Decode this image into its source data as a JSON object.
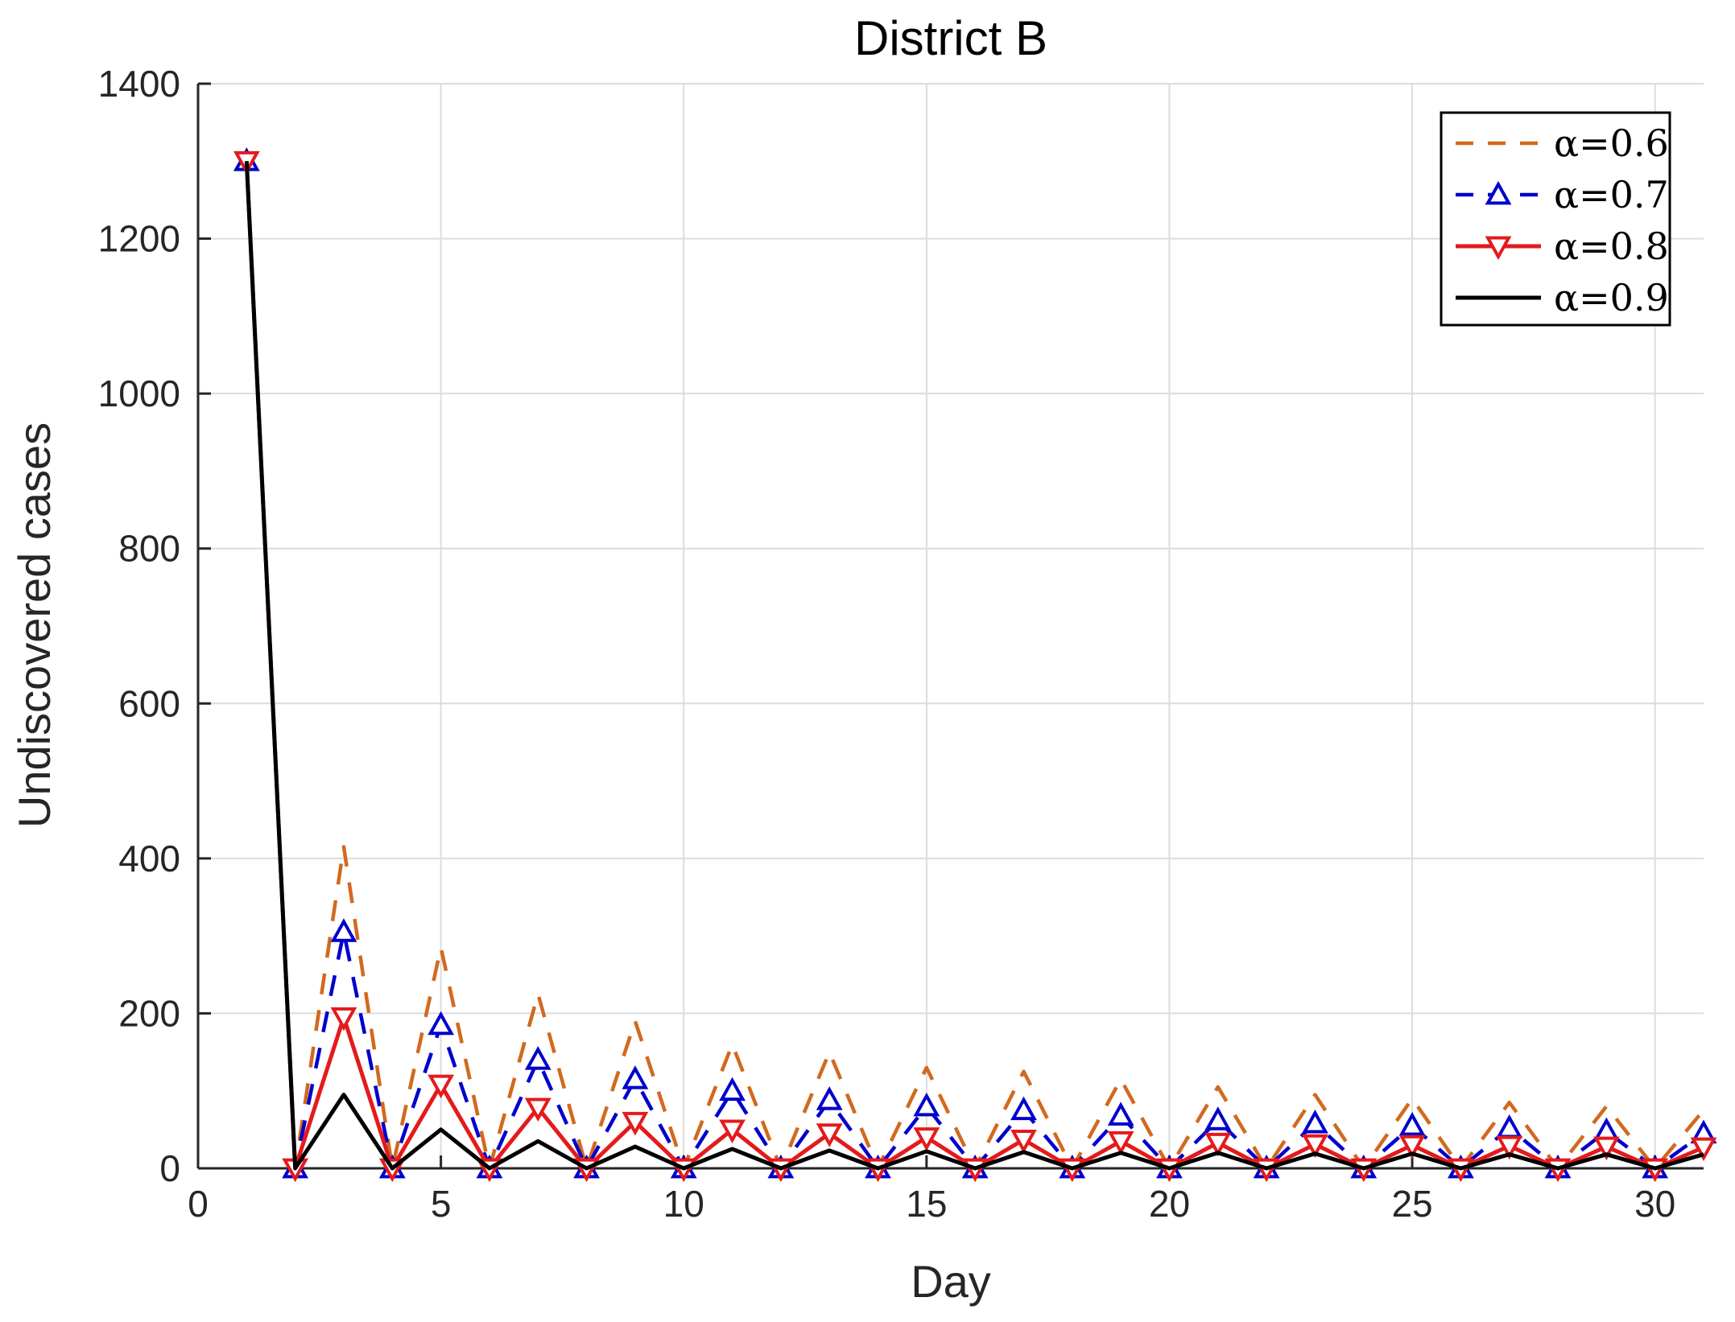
{
  "chart_data": {
    "type": "line",
    "title": "District B",
    "xlabel": "Day",
    "ylabel": "Undiscovered cases",
    "xlim": [
      0,
      31
    ],
    "ylim": [
      0,
      1400
    ],
    "xticks": [
      0,
      5,
      10,
      15,
      20,
      25,
      30
    ],
    "yticks": [
      0,
      200,
      400,
      600,
      800,
      1000,
      1200,
      1400
    ],
    "grid": true,
    "legend_position": "top-right",
    "x": [
      1,
      2,
      3,
      4,
      5,
      6,
      7,
      8,
      9,
      10,
      11,
      12,
      13,
      14,
      15,
      16,
      17,
      18,
      19,
      20,
      21,
      22,
      23,
      24,
      25,
      26,
      27,
      28,
      29,
      30,
      31
    ],
    "series": [
      {
        "name": "α=0.6",
        "color": "#d2691e",
        "style": "dashed",
        "marker": "none",
        "values": [
          1300,
          0,
          415,
          0,
          285,
          0,
          225,
          0,
          190,
          0,
          160,
          0,
          150,
          0,
          130,
          0,
          125,
          0,
          115,
          0,
          105,
          0,
          95,
          0,
          90,
          0,
          85,
          0,
          80,
          0,
          75
        ]
      },
      {
        "name": "α=0.7",
        "color": "#0000cc",
        "style": "dashed",
        "marker": "triangle-up",
        "values": [
          1300,
          0,
          305,
          0,
          185,
          0,
          140,
          0,
          115,
          0,
          100,
          0,
          88,
          0,
          80,
          0,
          75,
          0,
          68,
          0,
          62,
          0,
          58,
          0,
          55,
          0,
          52,
          0,
          48,
          0,
          45
        ]
      },
      {
        "name": "α=0.8",
        "color": "#e41a1c",
        "style": "solid",
        "marker": "triangle-down",
        "values": [
          1300,
          0,
          195,
          0,
          108,
          0,
          78,
          0,
          60,
          0,
          50,
          0,
          45,
          0,
          40,
          0,
          37,
          0,
          35,
          0,
          33,
          0,
          31,
          0,
          30,
          0,
          29,
          0,
          28,
          0,
          27
        ]
      },
      {
        "name": "α=0.9",
        "color": "#000000",
        "style": "solid",
        "marker": "none",
        "values": [
          1300,
          0,
          95,
          0,
          50,
          0,
          35,
          0,
          28,
          0,
          25,
          0,
          23,
          0,
          22,
          0,
          21,
          0,
          20,
          0,
          20,
          0,
          19,
          0,
          19,
          0,
          18,
          0,
          18,
          0,
          18
        ]
      }
    ]
  }
}
